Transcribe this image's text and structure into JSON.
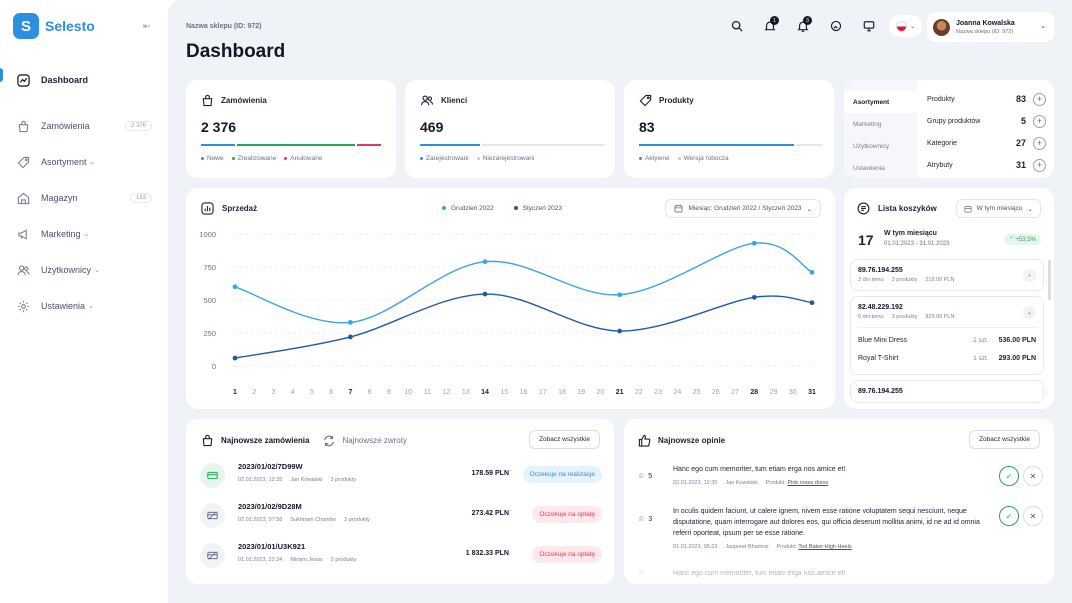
{
  "brand": {
    "name": "Selesto"
  },
  "sidebar": {
    "items": [
      {
        "label": "Dashboard",
        "badge": ""
      },
      {
        "label": "Zamówienia",
        "badge": "2 376"
      },
      {
        "label": "Asortyment",
        "badge": ""
      },
      {
        "label": "Magazyn",
        "badge": "183"
      },
      {
        "label": "Marketing",
        "badge": ""
      },
      {
        "label": "Użytkownicy",
        "badge": ""
      },
      {
        "label": "Ustawienia",
        "badge": ""
      }
    ]
  },
  "header": {
    "shop_label": "Nazwa sklepu (ID: 972)",
    "title": "Dashboard",
    "notif_count": "1",
    "alerts_count": "3",
    "user_name": "Joanna Kowalska",
    "user_sub": "Nazwa sklepu (ID: 972)"
  },
  "stats": {
    "orders": {
      "title": "Zamówienia",
      "value": "2 376",
      "legend": [
        "Nowe",
        "Zrealizowane",
        "Anulowane"
      ]
    },
    "clients": {
      "title": "Klienci",
      "value": "469",
      "legend": [
        "Zarejestrowani",
        "Niezarejestrowani"
      ]
    },
    "products": {
      "title": "Produkty",
      "value": "83",
      "legend": [
        "Aktywne",
        "Wersja robocza"
      ]
    }
  },
  "assortment": {
    "tabs": [
      "Asortyment",
      "Marketing",
      "Użytkownicy",
      "Ustawienia"
    ],
    "rows": [
      {
        "label": "Produkty",
        "value": "83"
      },
      {
        "label": "Grupy produktów",
        "value": "5"
      },
      {
        "label": "Kategorie",
        "value": "27"
      },
      {
        "label": "Atrybuty",
        "value": "31"
      }
    ]
  },
  "sales": {
    "title": "Sprzedaż",
    "legend_a": "Grudzień 2022",
    "legend_b": "Styczeń 2023",
    "period": "Miesiąc: Grudzień 2022 / Styczeń 2023"
  },
  "chart_data": {
    "type": "line",
    "title": "Sprzedaż",
    "xlabel": "",
    "ylabel": "",
    "ylim": [
      0,
      1000
    ],
    "yticks": [
      0,
      250,
      500,
      750,
      1000
    ],
    "x": [
      1,
      2,
      3,
      4,
      5,
      6,
      7,
      8,
      9,
      10,
      11,
      12,
      13,
      14,
      15,
      16,
      17,
      18,
      19,
      20,
      21,
      22,
      23,
      24,
      25,
      26,
      27,
      28,
      29,
      30,
      31
    ],
    "highlight_x": [
      1,
      7,
      14,
      21,
      28,
      31
    ],
    "series": [
      {
        "name": "Grudzień 2022",
        "color": "#3aa3e8",
        "points": [
          [
            1,
            600
          ],
          [
            7,
            330
          ],
          [
            14,
            790
          ],
          [
            21,
            540
          ],
          [
            28,
            930
          ],
          [
            31,
            710
          ]
        ]
      },
      {
        "name": "Styczeń 2023",
        "color": "#1f5aa6",
        "points": [
          [
            1,
            60
          ],
          [
            7,
            220
          ],
          [
            14,
            545
          ],
          [
            21,
            265
          ],
          [
            28,
            520
          ],
          [
            31,
            480
          ]
        ]
      }
    ]
  },
  "baskets": {
    "title": "Lista koszyków",
    "filter": "W tym miesiącu",
    "count": "17",
    "period": "W tym miesiącu",
    "dates": "01.01.2023 - 31.01.2023",
    "growth": "+53.5%",
    "items": [
      {
        "ip": "89.76.194.255",
        "ago": "3 dni temu",
        "qty": "2 produkty",
        "total": "218.00 PLN"
      },
      {
        "ip": "82.48.229.192",
        "ago": "6 dni temu",
        "qty": "3 produkty",
        "total": "829.00 PLN"
      },
      {
        "ip": "89.76.194.255",
        "ago": "",
        "qty": "",
        "total": ""
      }
    ],
    "products": [
      {
        "name": "Blue Mini Dress",
        "qty": "2 szt.",
        "price": "536.00 PLN"
      },
      {
        "name": "Royal T-Shirt",
        "qty": "1 szt.",
        "price": "293.00 PLN"
      }
    ]
  },
  "orders": {
    "tab_orders": "Najnowsze zamówienia",
    "tab_returns": "Najnowsze zwroty",
    "see_all": "Zobacz wszystkie",
    "rows": [
      {
        "id": "2023/01/02/7D99W",
        "date": "02.01.2023, 12:35",
        "customer": "Jan Kowalski",
        "qty": "3 produkty",
        "price": "178.59 PLN",
        "status": "Oczekuje na realizacje"
      },
      {
        "id": "2023/01/02/9D28M",
        "date": "02.01.2023, 07:58",
        "customer": "Sukhnam Chander",
        "qty": "2 produkty",
        "price": "273.42 PLN",
        "status": "Oczekuje na opłatę"
      },
      {
        "id": "2023/01/01/U3K921",
        "date": "01.01.2023, 22:34",
        "customer": "Miriam Jesus",
        "qty": "2 produkty",
        "price": "1 832.33 PLN",
        "status": "Oczekuje na opłatę"
      }
    ]
  },
  "reviews": {
    "title": "Najnowsze opinie",
    "see_all": "Zobacz wszystkie",
    "rows": [
      {
        "rating": "5",
        "text": "Hanc ego cum memoriter, tum etiam erga nos amice et!",
        "date": "02.01.2023, 12:35",
        "author": "Jan Kowalski",
        "product_label": "Produkt:",
        "product": "Pink roses dress"
      },
      {
        "rating": "3",
        "text": "In oculis quidem faciunt, ut calere ignem, nivem esse ratione voluptatem sequi nesciunt, neque disputatione, quam interrogare aut dolores eos, qui officia deserunt mollitia animi, id ne ad id omnia referri oporteat, ipsum per se esse ratione.",
        "date": "01.01.2023, 05:23",
        "author": "Jaspreet Bhamrai",
        "product_label": "Produkt:",
        "product": "Ted Baker High Heels"
      },
      {
        "rating": "",
        "text": "Hanc ego cum memoriter, tum etiam erga nos amice et!",
        "date": "",
        "author": "",
        "product_label": "",
        "product": ""
      }
    ]
  },
  "colors": {
    "accent": "#2d8fe0",
    "green": "#27a55b",
    "red": "#e03a5a",
    "dark_blue": "#1f5aa6"
  }
}
